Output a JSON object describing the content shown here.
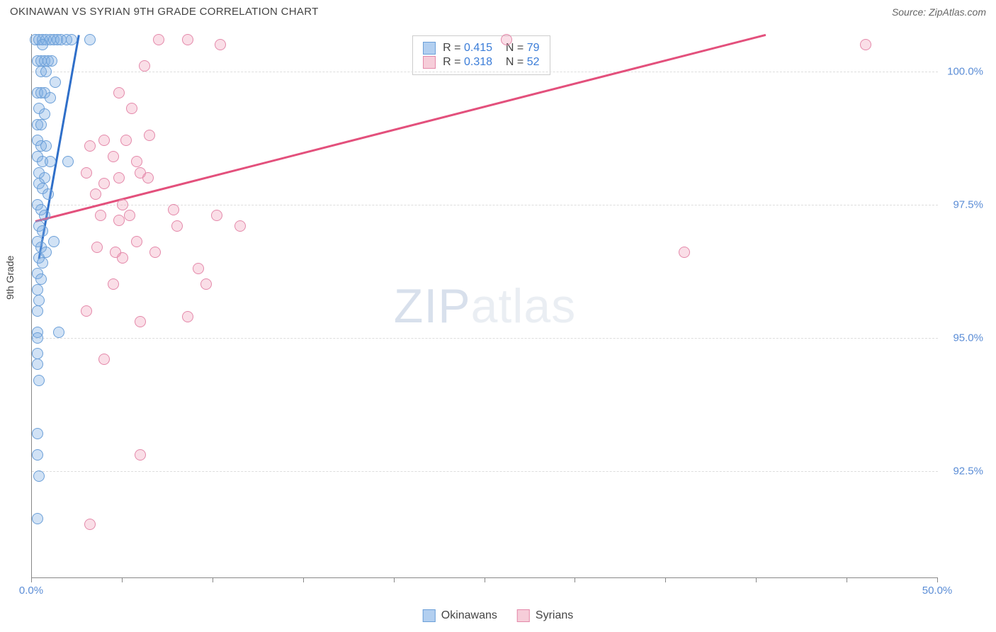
{
  "header": {
    "title": "OKINAWAN VS SYRIAN 9TH GRADE CORRELATION CHART",
    "source": "Source: ZipAtlas.com"
  },
  "chart": {
    "type": "scatter",
    "y_axis_label": "9th Grade",
    "background_color": "#ffffff",
    "grid_color": "#dddddd",
    "axis_color": "#888888",
    "tick_label_color": "#5b8dd6",
    "tick_label_fontsize": 15,
    "xlim": [
      0,
      50
    ],
    "ylim": [
      90.5,
      100.7
    ],
    "y_ticks": [
      {
        "v": 92.5,
        "label": "92.5%"
      },
      {
        "v": 95.0,
        "label": "95.0%"
      },
      {
        "v": 97.5,
        "label": "97.5%"
      },
      {
        "v": 100.0,
        "label": "100.0%"
      }
    ],
    "x_ticks": [
      {
        "v": 0,
        "label": "0.0%"
      },
      {
        "v": 5,
        "label": ""
      },
      {
        "v": 10,
        "label": ""
      },
      {
        "v": 15,
        "label": ""
      },
      {
        "v": 20,
        "label": ""
      },
      {
        "v": 25,
        "label": ""
      },
      {
        "v": 30,
        "label": ""
      },
      {
        "v": 35,
        "label": ""
      },
      {
        "v": 40,
        "label": ""
      },
      {
        "v": 45,
        "label": ""
      },
      {
        "v": 50,
        "label": "50.0%"
      }
    ],
    "series": [
      {
        "name": "Okinawans",
        "fill_color": "rgba(123,171,227,0.35)",
        "stroke_color": "#6b9fd8",
        "swatch_fill": "#b2cff0",
        "swatch_border": "#6b9fd8",
        "marker_size": 16,
        "R": "0.415",
        "N": "79",
        "trend": {
          "x1": 0.4,
          "y1": 96.5,
          "x2": 2.6,
          "y2": 100.7,
          "color": "#2f6fc9",
          "width": 3
        },
        "points": [
          [
            0.2,
            100.6
          ],
          [
            0.4,
            100.6
          ],
          [
            0.6,
            100.6
          ],
          [
            0.8,
            100.6
          ],
          [
            1.0,
            100.6
          ],
          [
            1.2,
            100.6
          ],
          [
            1.4,
            100.6
          ],
          [
            1.6,
            100.6
          ],
          [
            1.9,
            100.6
          ],
          [
            2.2,
            100.6
          ],
          [
            0.6,
            100.5
          ],
          [
            3.2,
            100.6
          ],
          [
            0.3,
            100.2
          ],
          [
            0.5,
            100.2
          ],
          [
            0.7,
            100.2
          ],
          [
            0.9,
            100.2
          ],
          [
            1.1,
            100.2
          ],
          [
            0.5,
            100.0
          ],
          [
            0.8,
            100.0
          ],
          [
            1.3,
            99.8
          ],
          [
            0.3,
            99.6
          ],
          [
            0.5,
            99.6
          ],
          [
            0.7,
            99.6
          ],
          [
            1.0,
            99.5
          ],
          [
            0.4,
            99.3
          ],
          [
            0.7,
            99.2
          ],
          [
            0.3,
            99.0
          ],
          [
            0.5,
            99.0
          ],
          [
            0.3,
            98.7
          ],
          [
            0.5,
            98.6
          ],
          [
            0.8,
            98.6
          ],
          [
            0.3,
            98.4
          ],
          [
            0.6,
            98.3
          ],
          [
            1.0,
            98.3
          ],
          [
            0.4,
            98.1
          ],
          [
            0.7,
            98.0
          ],
          [
            2.0,
            98.3
          ],
          [
            0.4,
            97.9
          ],
          [
            0.6,
            97.8
          ],
          [
            0.9,
            97.7
          ],
          [
            0.3,
            97.5
          ],
          [
            0.5,
            97.4
          ],
          [
            0.7,
            97.3
          ],
          [
            0.4,
            97.1
          ],
          [
            0.6,
            97.0
          ],
          [
            0.3,
            96.8
          ],
          [
            0.5,
            96.7
          ],
          [
            0.8,
            96.6
          ],
          [
            0.4,
            96.5
          ],
          [
            0.6,
            96.4
          ],
          [
            1.2,
            96.8
          ],
          [
            0.3,
            96.2
          ],
          [
            0.5,
            96.1
          ],
          [
            0.3,
            95.9
          ],
          [
            0.4,
            95.7
          ],
          [
            0.3,
            95.5
          ],
          [
            1.5,
            95.1
          ],
          [
            0.3,
            95.1
          ],
          [
            0.3,
            95.0
          ],
          [
            0.3,
            94.7
          ],
          [
            0.3,
            94.5
          ],
          [
            0.4,
            94.2
          ],
          [
            0.3,
            93.2
          ],
          [
            0.3,
            92.8
          ],
          [
            0.4,
            92.4
          ],
          [
            0.3,
            91.6
          ]
        ]
      },
      {
        "name": "Syrians",
        "fill_color": "rgba(238,145,176,0.3)",
        "stroke_color": "#e489aa",
        "swatch_fill": "#f6cdd9",
        "swatch_border": "#e489aa",
        "marker_size": 16,
        "R": "0.318",
        "N": "52",
        "trend": {
          "x1": 0.2,
          "y1": 97.2,
          "x2": 40.5,
          "y2": 100.7,
          "color": "#e3507c",
          "width": 3
        },
        "points": [
          [
            7.0,
            100.6
          ],
          [
            8.6,
            100.6
          ],
          [
            10.4,
            100.5
          ],
          [
            26.2,
            100.6
          ],
          [
            46.0,
            100.5
          ],
          [
            6.2,
            100.1
          ],
          [
            4.8,
            99.6
          ],
          [
            5.5,
            99.3
          ],
          [
            6.5,
            98.8
          ],
          [
            5.2,
            98.7
          ],
          [
            4.0,
            98.7
          ],
          [
            3.2,
            98.6
          ],
          [
            4.5,
            98.4
          ],
          [
            5.8,
            98.3
          ],
          [
            3.0,
            98.1
          ],
          [
            6.0,
            98.1
          ],
          [
            4.8,
            98.0
          ],
          [
            6.4,
            98.0
          ],
          [
            4.0,
            97.9
          ],
          [
            3.5,
            97.7
          ],
          [
            5.0,
            97.5
          ],
          [
            7.8,
            97.4
          ],
          [
            3.8,
            97.3
          ],
          [
            4.8,
            97.2
          ],
          [
            8.0,
            97.1
          ],
          [
            5.4,
            97.3
          ],
          [
            10.2,
            97.3
          ],
          [
            11.5,
            97.1
          ],
          [
            5.8,
            96.8
          ],
          [
            3.6,
            96.7
          ],
          [
            4.6,
            96.6
          ],
          [
            6.8,
            96.6
          ],
          [
            5.0,
            96.5
          ],
          [
            9.2,
            96.3
          ],
          [
            4.5,
            96.0
          ],
          [
            9.6,
            96.0
          ],
          [
            3.0,
            95.5
          ],
          [
            8.6,
            95.4
          ],
          [
            6.0,
            95.3
          ],
          [
            36.0,
            96.6
          ],
          [
            4.0,
            94.6
          ],
          [
            6.0,
            92.8
          ],
          [
            3.2,
            91.5
          ]
        ]
      }
    ],
    "watermark": {
      "text_bold": "ZIP",
      "text_light": "atlas"
    }
  },
  "legend_top": {
    "rows": [
      {
        "swatch": 0,
        "r_label": "R = ",
        "r_val": "0.415",
        "n_label": "N = ",
        "n_val": "79"
      },
      {
        "swatch": 1,
        "r_label": "R = ",
        "r_val": "0.318",
        "n_label": "N = ",
        "n_val": "52"
      }
    ]
  },
  "legend_bottom": {
    "items": [
      {
        "swatch": 0,
        "label": "Okinawans"
      },
      {
        "swatch": 1,
        "label": "Syrians"
      }
    ]
  }
}
